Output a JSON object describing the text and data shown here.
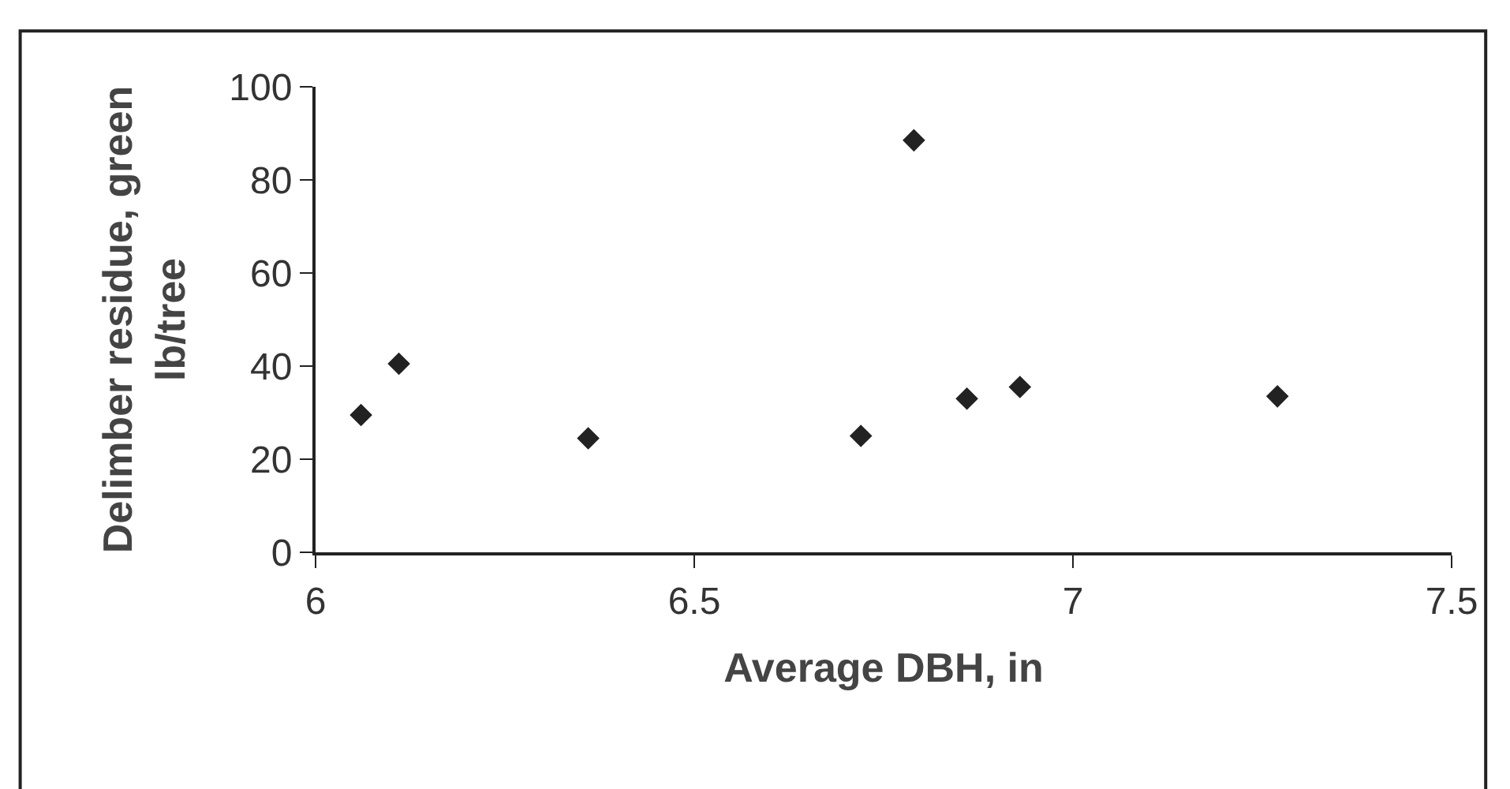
{
  "chart_data": {
    "type": "scatter",
    "xlabel": "Average DBH, in",
    "ylabel": "Delimber residue, green lb/tree",
    "x": [
      6.06,
      6.11,
      6.36,
      6.72,
      6.79,
      6.86,
      6.93,
      7.27
    ],
    "values": [
      29.5,
      40.5,
      24.5,
      25,
      88.5,
      33,
      35.5,
      33.5
    ],
    "color": "#222222",
    "marker": "diamond",
    "xlim": [
      6,
      7.5
    ],
    "xticks": [
      6,
      6.5,
      7,
      7.5
    ],
    "ylim": [
      0,
      100
    ],
    "yticks": [
      0,
      20,
      40,
      60,
      80,
      100
    ]
  }
}
